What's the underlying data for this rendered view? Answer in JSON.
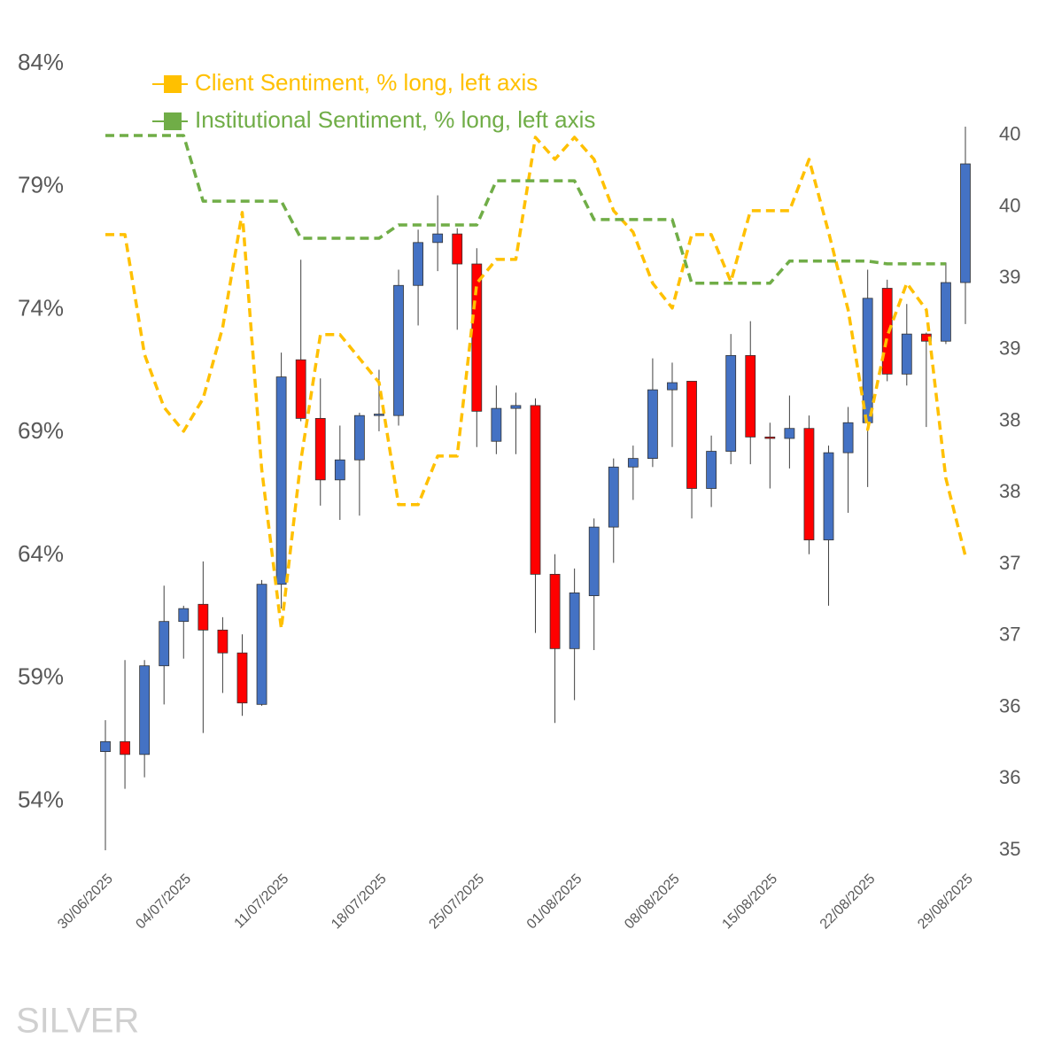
{
  "chart_data": {
    "type": "candlestick",
    "categories": [
      "30/06/2025",
      null,
      null,
      null,
      "04/07/2025",
      null,
      null,
      null,
      null,
      "11/07/2025",
      null,
      null,
      null,
      null,
      "18/07/2025",
      null,
      null,
      null,
      null,
      "25/07/2025",
      null,
      null,
      null,
      null,
      "01/08/2025",
      null,
      null,
      null,
      null,
      "08/08/2025",
      null,
      null,
      null,
      null,
      "15/08/2025",
      null,
      null,
      null,
      null,
      "22/08/2025",
      null,
      null,
      null,
      null,
      "29/08/2025"
    ],
    "candles": {
      "axis": "y2",
      "up_color": "#4472c4",
      "down_color": "#ff0000",
      "open": [
        35.69,
        35.76,
        35.67,
        36.29,
        36.6,
        36.72,
        36.54,
        36.38,
        36.02,
        36.86,
        38.43,
        38.02,
        37.59,
        37.73,
        38.04,
        38.04,
        38.95,
        39.25,
        39.31,
        39.1,
        37.86,
        38.09,
        38.11,
        36.93,
        36.41,
        36.78,
        37.26,
        37.68,
        37.74,
        38.22,
        38.28,
        37.53,
        37.79,
        38.46,
        37.89,
        37.88,
        37.95,
        37.17,
        37.78,
        37.99,
        38.93,
        38.33,
        38.61,
        38.56,
        38.97
      ],
      "high": [
        35.91,
        36.33,
        36.33,
        36.85,
        36.71,
        37.02,
        36.63,
        36.51,
        36.89,
        38.48,
        39.13,
        38.3,
        37.97,
        38.06,
        38.36,
        39.06,
        39.34,
        39.58,
        39.35,
        39.21,
        38.25,
        38.2,
        38.16,
        37.07,
        36.97,
        37.32,
        37.74,
        37.83,
        38.44,
        38.41,
        38.28,
        37.9,
        38.61,
        38.7,
        37.99,
        38.18,
        38.04,
        37.83,
        38.1,
        39.06,
        38.99,
        38.82,
        38.62,
        39.11,
        40.06
      ],
      "low": [
        35.0,
        35.43,
        35.51,
        36.02,
        36.34,
        35.82,
        36.1,
        35.94,
        36.01,
        36.69,
        38.0,
        37.41,
        37.31,
        37.34,
        37.93,
        37.97,
        38.67,
        39.05,
        38.64,
        37.82,
        37.77,
        37.77,
        36.52,
        35.89,
        36.05,
        36.4,
        37.01,
        37.45,
        37.68,
        37.82,
        37.32,
        37.4,
        37.7,
        37.7,
        37.53,
        37.67,
        37.07,
        36.71,
        37.36,
        37.54,
        38.28,
        38.25,
        37.96,
        38.54,
        38.68
      ],
      "close": [
        35.76,
        35.67,
        36.29,
        36.6,
        36.69,
        36.54,
        36.38,
        36.03,
        36.86,
        38.31,
        38.02,
        37.59,
        37.73,
        38.04,
        38.05,
        38.95,
        39.25,
        39.31,
        39.1,
        38.07,
        38.09,
        38.11,
        36.93,
        36.41,
        36.8,
        37.26,
        37.68,
        37.74,
        38.22,
        38.27,
        37.53,
        37.79,
        38.46,
        37.89,
        37.88,
        37.95,
        37.17,
        37.78,
        37.99,
        38.86,
        38.33,
        38.61,
        38.56,
        38.97,
        39.8
      ]
    },
    "series": [
      {
        "name": "Client Sentiment, % long, left axis",
        "color": "#ffc000",
        "dashed": true,
        "values": [
          77.05,
          77.05,
          72.18,
          70.02,
          69.05,
          70.38,
          73.27,
          77.95,
          67.5,
          61.02,
          67.86,
          72.98,
          72.98,
          72.01,
          71.03,
          66.06,
          66.06,
          68.04,
          68.04,
          75.07,
          76.04,
          76.04,
          81.01,
          80.11,
          81.01,
          80.11,
          78.02,
          77.15,
          75.07,
          74.06,
          77.05,
          77.05,
          75.14,
          78.02,
          78.02,
          78.02,
          80.11,
          77.15,
          73.99,
          69.12,
          72.91,
          75.07,
          73.99,
          67.14,
          63.97
        ]
      },
      {
        "name": "Institutional Sentiment, % long, left axis",
        "color": "#70ad47",
        "dashed": true,
        "values": [
          81.08,
          81.08,
          81.08,
          81.08,
          81.08,
          78.41,
          78.41,
          78.41,
          78.41,
          78.41,
          76.9,
          76.9,
          76.9,
          76.9,
          76.9,
          77.44,
          77.44,
          77.44,
          77.44,
          77.44,
          79.24,
          79.24,
          79.24,
          79.24,
          79.24,
          77.66,
          77.66,
          77.66,
          77.66,
          77.66,
          75.07,
          75.07,
          75.07,
          75.07,
          75.07,
          75.97,
          75.97,
          75.97,
          75.97,
          75.97,
          75.86,
          75.86,
          75.86,
          75.86,
          null
        ]
      }
    ],
    "ylim": [
      52,
      84
    ],
    "yticks": [
      {
        "value": 54,
        "label": "54%"
      },
      {
        "value": 59,
        "label": "59%"
      },
      {
        "value": 64,
        "label": "64%"
      },
      {
        "value": 69,
        "label": "69%"
      },
      {
        "value": 74,
        "label": "74%"
      },
      {
        "value": 79,
        "label": "79%"
      },
      {
        "value": 84,
        "label": "84%"
      }
    ],
    "y2lim": [
      35,
      40.5
    ],
    "y2ticks": [
      35,
      {
        "value": 35.5,
        "label": "36"
      },
      36,
      {
        "value": 36.5,
        "label": "37"
      },
      37,
      {
        "value": 37.5,
        "label": "38"
      },
      38,
      {
        "value": 38.5,
        "label": "39"
      },
      39,
      {
        "value": 39.5,
        "label": "40"
      },
      40
    ],
    "legend": "top-left",
    "watermark": "SILVER"
  }
}
